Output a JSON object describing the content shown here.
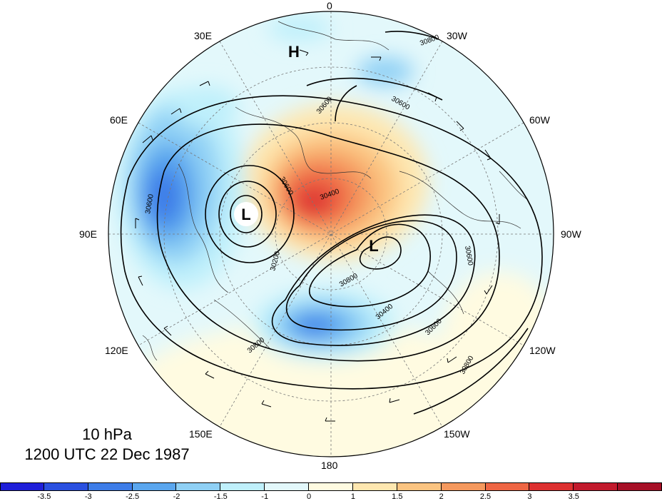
{
  "map": {
    "longitude_labels": {
      "lon0": "0",
      "lon30w": "30W",
      "lon60w": "60W",
      "lon90w": "90W",
      "lon120w": "120W",
      "lon150w": "150W",
      "lon180": "180",
      "lon150e": "150E",
      "lon120e": "120E",
      "lon90e": "90E",
      "lon60e": "60E",
      "lon30e": "30E"
    },
    "pressure_centers": {
      "high": "H",
      "low_1": "L",
      "low_2": "L"
    },
    "contour_labels": {
      "c1": "30800",
      "c2": "30600",
      "c3": "30600",
      "c4": "30400",
      "c5": "30600",
      "c6": "30200",
      "c7": "30400",
      "c8": "30800",
      "c9": "30600",
      "c10": "30600",
      "c11": "30800",
      "c12": "30800",
      "c13": "30600"
    }
  },
  "title": {
    "level": "10 hPa",
    "datetime": "1200 UTC 22 Dec 1987"
  },
  "colorbar": {
    "colors": [
      "#1f1fd9",
      "#2a50e0",
      "#3e7de8",
      "#5aa6ee",
      "#8fd0f5",
      "#bff0fb",
      "#e3f8fb",
      "#fffbe1",
      "#fee7b0",
      "#fbc481",
      "#f5995e",
      "#ee6644",
      "#dd3030",
      "#c21a2d",
      "#a60f26"
    ],
    "labels": [
      "-3.5",
      "-3",
      "-2.5",
      "-2",
      "-1.5",
      "-1",
      "0",
      "1",
      "1.5",
      "2",
      "2.5",
      "3",
      "3.5"
    ]
  }
}
